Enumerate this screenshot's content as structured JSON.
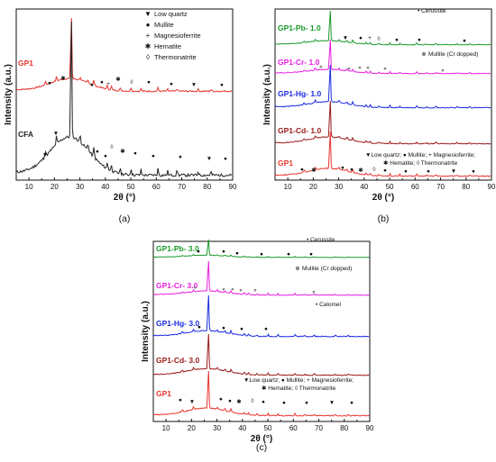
{
  "chart_data": [
    {
      "type": "line",
      "panel_label": "(a)",
      "xlabel": "2θ (°)",
      "ylabel": "Intensity (a.u.)",
      "xlim": [
        5,
        90
      ],
      "xticks": [
        10,
        20,
        30,
        40,
        50,
        60,
        70,
        80,
        90
      ],
      "grid": false,
      "legend": {
        "placement": "top-right",
        "entries": [
          {
            "symbol": "▼",
            "label": "Low quartz"
          },
          {
            "symbol": "●",
            "label": "Mullite"
          },
          {
            "symbol": "+",
            "label": "Magnesioferrite"
          },
          {
            "symbol": "✱",
            "label": "Hematite"
          },
          {
            "symbol": "◊",
            "label": "Thermonatrite"
          }
        ]
      },
      "series": [
        {
          "name": "GP1",
          "color": "#e8342e",
          "x": [
            5,
            10,
            20,
            24.2,
            26.6,
            30,
            35,
            50,
            70,
            90
          ],
          "y": [
            0.62,
            0.82,
            0.72,
            0.77,
            1.0,
            0.72,
            0.68,
            0.66,
            0.65,
            0.64
          ]
        },
        {
          "name": "CFA",
          "color": "#222222",
          "x": [
            5,
            10,
            20,
            24.2,
            26.6,
            30,
            35,
            50,
            70,
            90
          ],
          "y": [
            0.22,
            0.35,
            0.28,
            0.34,
            0.58,
            0.2,
            0.15,
            0.12,
            0.11,
            0.1
          ]
        }
      ]
    },
    {
      "type": "line",
      "panel_label": "(b)",
      "xlabel": "2θ (°)",
      "ylabel": "Intensity (a.u.)",
      "xlim": [
        5,
        90
      ],
      "xticks": [
        10,
        20,
        30,
        40,
        50,
        60,
        70,
        80,
        90
      ],
      "grid": false,
      "annotations": [
        {
          "symbol": "●",
          "text": "Cerussite"
        },
        {
          "symbol": "●",
          "text": "Mullite (Cr dopped)"
        },
        {
          "symbol": "",
          "text": "▼Low quartz; ● Mullite; + Magnesioferrite;"
        },
        {
          "symbol": "",
          "text": "✱ Hematite; ◊ Thermonatrite"
        }
      ],
      "series": [
        {
          "name": "GP1-Pb- 1.0",
          "color": "#1a9a2a"
        },
        {
          "name": "GP1-Cr- 1.0",
          "color": "#e91ee0"
        },
        {
          "name": "GP1-Hg- 1.0",
          "color": "#1a2be0"
        },
        {
          "name": "GP1-Cd- 1.0",
          "color": "#9a1a1a"
        },
        {
          "name": "GP1",
          "color": "#e8342e"
        }
      ]
    },
    {
      "type": "line",
      "panel_label": "(c)",
      "xlabel": "2θ (°)",
      "ylabel": "Intensity (a.u.)",
      "xlim": [
        5,
        90
      ],
      "xticks": [
        10,
        20,
        30,
        40,
        50,
        60,
        70,
        80,
        90
      ],
      "grid": false,
      "annotations": [
        {
          "symbol": "●",
          "text": "Cerussite"
        },
        {
          "symbol": "●",
          "text": "Mullite (Cr dopped)"
        },
        {
          "symbol": "●",
          "text": "Calomel"
        },
        {
          "symbol": "",
          "text": "▼Low quartz; ● Mullite; + Magnesioferrite;"
        },
        {
          "symbol": "",
          "text": "✱ Hematite; ◊ Thermonatrite"
        }
      ],
      "series": [
        {
          "name": "GP1-Pb- 3.0",
          "color": "#1a9a2a"
        },
        {
          "name": "GP1-Cr- 3.0",
          "color": "#e91ee0"
        },
        {
          "name": "GP1-Hg- 3.0",
          "color": "#1a2be0"
        },
        {
          "name": "GP1-Cd- 3.0",
          "color": "#9a1a1a"
        },
        {
          "name": "GP1",
          "color": "#e8342e"
        }
      ]
    }
  ]
}
